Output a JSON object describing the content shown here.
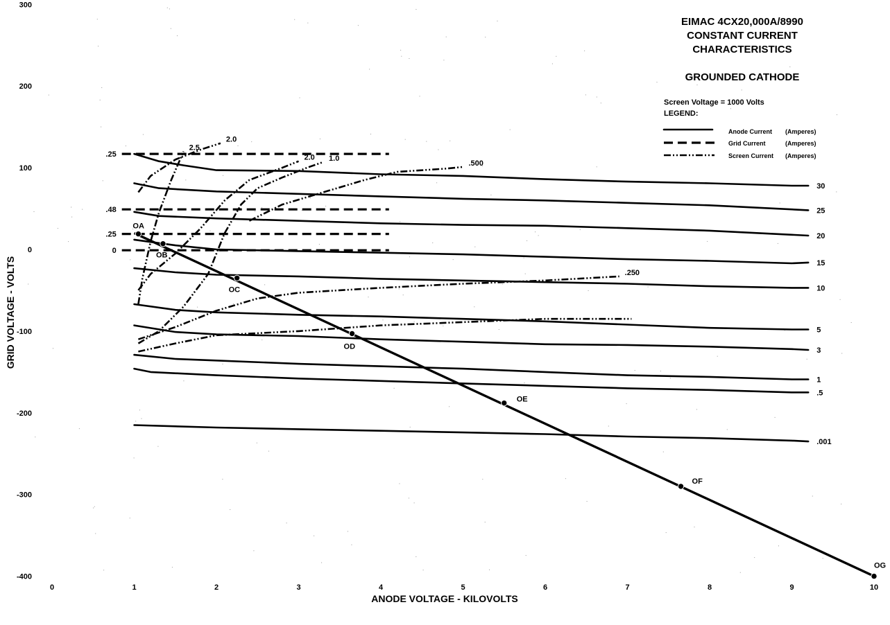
{
  "chart_data": {
    "type": "line",
    "title_lines": [
      "EIMAC 4CX20,000A/8990",
      "CONSTANT CURRENT",
      "CHARACTERISTICS"
    ],
    "subtitle": "GROUNDED CATHODE",
    "note": "Screen Voltage = 1000 Volts",
    "xlabel": "ANODE VOLTAGE - KILOVOLTS",
    "ylabel": "GRID VOLTAGE - VOLTS",
    "xlim": [
      0,
      10
    ],
    "ylim": [
      -400,
      300
    ],
    "x_ticks": [
      {
        "value": 0,
        "label": "0"
      },
      {
        "value": 1,
        "label": "1"
      },
      {
        "value": 2,
        "label": "2"
      },
      {
        "value": 3,
        "label": "3"
      },
      {
        "value": 4,
        "label": "4"
      },
      {
        "value": 5,
        "label": "5"
      },
      {
        "value": 6,
        "label": "6"
      },
      {
        "value": 7,
        "label": "7"
      },
      {
        "value": 8,
        "label": "8"
      },
      {
        "value": 9,
        "label": "9"
      },
      {
        "value": 10,
        "label": "10"
      }
    ],
    "y_ticks": [
      {
        "value": 300,
        "label": "300"
      },
      {
        "value": 200,
        "label": "200"
      },
      {
        "value": 100,
        "label": "100"
      },
      {
        "value": 0,
        "label": "0"
      },
      {
        "value": -100,
        "label": "-100"
      },
      {
        "value": -200,
        "label": "-200"
      },
      {
        "value": -300,
        "label": "-300"
      },
      {
        "value": -400,
        "label": "-400"
      }
    ],
    "legend": {
      "title": "LEGEND:",
      "placement": "top-right",
      "entries": [
        {
          "style": "solid",
          "name": "Anode Current",
          "unit": "(Amperes)"
        },
        {
          "style": "dashed",
          "name": "Grid Current",
          "unit": "(Amperes)"
        },
        {
          "style": "dashdot",
          "name": "Screen Current",
          "unit": "(Amperes)"
        }
      ]
    },
    "anode_current_series": [
      {
        "label": "30",
        "points": [
          [
            1.0,
            117
          ],
          [
            1.3,
            108
          ],
          [
            1.6,
            103
          ],
          [
            2.0,
            97
          ],
          [
            3.0,
            96
          ],
          [
            4.0,
            92
          ],
          [
            5.0,
            90
          ],
          [
            6.0,
            86
          ],
          [
            7.0,
            83
          ],
          [
            8.0,
            81
          ],
          [
            9.0,
            78
          ],
          [
            9.2,
            78
          ]
        ]
      },
      {
        "label": "25",
        "points": [
          [
            1.0,
            81
          ],
          [
            1.3,
            75
          ],
          [
            2.0,
            71
          ],
          [
            3.0,
            68
          ],
          [
            4.0,
            65
          ],
          [
            5.0,
            62
          ],
          [
            6.0,
            60
          ],
          [
            7.0,
            57
          ],
          [
            8.0,
            54
          ],
          [
            9.0,
            49
          ],
          [
            9.2,
            48
          ]
        ]
      },
      {
        "label": "20",
        "points": [
          [
            1.0,
            46
          ],
          [
            1.3,
            41
          ],
          [
            2.0,
            38
          ],
          [
            3.0,
            35
          ],
          [
            4.0,
            32
          ],
          [
            5.0,
            30
          ],
          [
            6.0,
            29
          ],
          [
            7.0,
            26
          ],
          [
            8.0,
            23
          ],
          [
            9.0,
            18
          ],
          [
            9.2,
            17
          ]
        ]
      },
      {
        "label": "15",
        "points": [
          [
            1.0,
            12
          ],
          [
            1.5,
            5
          ],
          [
            2.0,
            0
          ],
          [
            3.0,
            -2
          ],
          [
            4.0,
            -4
          ],
          [
            5.0,
            -6
          ],
          [
            6.0,
            -9
          ],
          [
            7.0,
            -12
          ],
          [
            8.0,
            -14
          ],
          [
            9.0,
            -17
          ],
          [
            9.2,
            -16
          ]
        ]
      },
      {
        "label": "10",
        "points": [
          [
            1.0,
            -23
          ],
          [
            1.5,
            -28
          ],
          [
            2.0,
            -31
          ],
          [
            3.0,
            -33
          ],
          [
            4.0,
            -36
          ],
          [
            5.0,
            -38
          ],
          [
            6.0,
            -40
          ],
          [
            7.0,
            -42
          ],
          [
            8.0,
            -45
          ],
          [
            9.0,
            -47
          ],
          [
            9.2,
            -47
          ]
        ]
      },
      {
        "label": "5",
        "points": [
          [
            1.0,
            -67
          ],
          [
            1.5,
            -74
          ],
          [
            2.0,
            -77
          ],
          [
            3.0,
            -80
          ],
          [
            4.0,
            -82
          ],
          [
            5.0,
            -85
          ],
          [
            6.0,
            -88
          ],
          [
            7.0,
            -92
          ],
          [
            8.0,
            -96
          ],
          [
            9.0,
            -98
          ],
          [
            9.2,
            -98
          ]
        ]
      },
      {
        "label": "3",
        "points": [
          [
            1.0,
            -93
          ],
          [
            1.5,
            -101
          ],
          [
            2.0,
            -104
          ],
          [
            3.0,
            -106
          ],
          [
            4.0,
            -110
          ],
          [
            5.0,
            -113
          ],
          [
            6.0,
            -116
          ],
          [
            7.0,
            -117
          ],
          [
            8.0,
            -119
          ],
          [
            9.0,
            -122
          ],
          [
            9.2,
            -123
          ]
        ]
      },
      {
        "label": "1",
        "points": [
          [
            1.0,
            -129
          ],
          [
            1.5,
            -134
          ],
          [
            2.0,
            -136
          ],
          [
            3.0,
            -140
          ],
          [
            4.0,
            -143
          ],
          [
            5.0,
            -146
          ],
          [
            6.0,
            -150
          ],
          [
            7.0,
            -154
          ],
          [
            8.0,
            -156
          ],
          [
            9.0,
            -159
          ],
          [
            9.2,
            -159
          ]
        ]
      },
      {
        "label": ".5",
        "points": [
          [
            1.0,
            -146
          ],
          [
            1.2,
            -150
          ],
          [
            2.0,
            -154
          ],
          [
            3.0,
            -158
          ],
          [
            4.0,
            -161
          ],
          [
            5.0,
            -164
          ],
          [
            6.0,
            -167
          ],
          [
            7.0,
            -170
          ],
          [
            8.0,
            -172
          ],
          [
            9.0,
            -175
          ],
          [
            9.2,
            -175
          ]
        ]
      },
      {
        "label": ".001",
        "points": [
          [
            1.0,
            -215
          ],
          [
            2.0,
            -218
          ],
          [
            3.0,
            -220
          ],
          [
            4.0,
            -222
          ],
          [
            5.0,
            -224
          ],
          [
            6.0,
            -226
          ],
          [
            7.0,
            -229
          ],
          [
            8.0,
            -231
          ],
          [
            9.0,
            -234
          ],
          [
            9.2,
            -235
          ]
        ]
      }
    ],
    "grid_current_series": [
      {
        "label": ".25",
        "points": [
          [
            0.85,
            117
          ],
          [
            4.1,
            117
          ]
        ]
      },
      {
        "label": ".48",
        "points": [
          [
            0.85,
            49
          ],
          [
            4.1,
            49
          ]
        ]
      },
      {
        "label": ".25",
        "points": [
          [
            0.85,
            19
          ],
          [
            4.1,
            19
          ]
        ]
      },
      {
        "label": "0",
        "points": [
          [
            0.85,
            -1
          ],
          [
            4.1,
            -1
          ]
        ]
      }
    ],
    "screen_current_series": [
      {
        "label": "2.5",
        "points": [
          [
            1.05,
            -67
          ],
          [
            1.1,
            -35
          ],
          [
            1.2,
            10
          ],
          [
            1.3,
            45
          ],
          [
            1.45,
            85
          ],
          [
            1.6,
            120
          ]
        ]
      },
      {
        "label": "2.0",
        "points": [
          [
            1.05,
            70
          ],
          [
            1.2,
            90
          ],
          [
            1.5,
            110
          ],
          [
            1.8,
            122
          ],
          [
            2.05,
            130
          ]
        ]
      },
      {
        "label": "2.0",
        "points": [
          [
            1.05,
            -50
          ],
          [
            1.2,
            -30
          ],
          [
            1.5,
            -5
          ],
          [
            1.8,
            25
          ],
          [
            2.1,
            60
          ],
          [
            2.4,
            85
          ],
          [
            2.8,
            100
          ],
          [
            3.0,
            108
          ]
        ]
      },
      {
        "label": "1.0",
        "points": [
          [
            1.05,
            -115
          ],
          [
            1.3,
            -100
          ],
          [
            1.6,
            -70
          ],
          [
            1.9,
            -30
          ],
          [
            2.1,
            20
          ],
          [
            2.3,
            55
          ],
          [
            2.5,
            75
          ],
          [
            2.8,
            88
          ],
          [
            3.1,
            100
          ],
          [
            3.3,
            107
          ]
        ]
      },
      {
        "label": ".500",
        "points": [
          [
            2.4,
            35
          ],
          [
            2.8,
            55
          ],
          [
            3.3,
            70
          ],
          [
            3.8,
            85
          ],
          [
            4.2,
            95
          ],
          [
            4.8,
            99
          ],
          [
            5.0,
            101
          ]
        ]
      },
      {
        "label": ".250",
        "points": [
          [
            1.05,
            -110
          ],
          [
            1.5,
            -95
          ],
          [
            2.0,
            -75
          ],
          [
            2.5,
            -60
          ],
          [
            3.0,
            -53
          ],
          [
            4.0,
            -47
          ],
          [
            5.0,
            -42
          ],
          [
            6.0,
            -38
          ],
          [
            6.9,
            -33
          ]
        ]
      },
      {
        "label": "",
        "points": [
          [
            1.05,
            -125
          ],
          [
            1.5,
            -115
          ],
          [
            2.0,
            -105
          ],
          [
            3.0,
            -100
          ],
          [
            4.0,
            -93
          ],
          [
            5.0,
            -89
          ],
          [
            6.0,
            -85
          ],
          [
            7.0,
            -85
          ],
          [
            7.05,
            -85
          ]
        ]
      }
    ],
    "load_line": {
      "points": [
        [
          1.0,
          20
        ],
        [
          10.0,
          -400
        ]
      ],
      "operating_points": [
        {
          "label": "OA",
          "x": 1.05,
          "y": 19
        },
        {
          "label": "OB",
          "x": 1.35,
          "y": 7
        },
        {
          "label": "OC",
          "x": 2.25,
          "y": -35
        },
        {
          "label": "OD",
          "x": 3.65,
          "y": -103
        },
        {
          "label": "OE",
          "x": 5.5,
          "y": -188
        },
        {
          "label": "OF",
          "x": 7.65,
          "y": -290
        },
        {
          "label": "OG",
          "x": 10.0,
          "y": -400
        }
      ]
    }
  }
}
